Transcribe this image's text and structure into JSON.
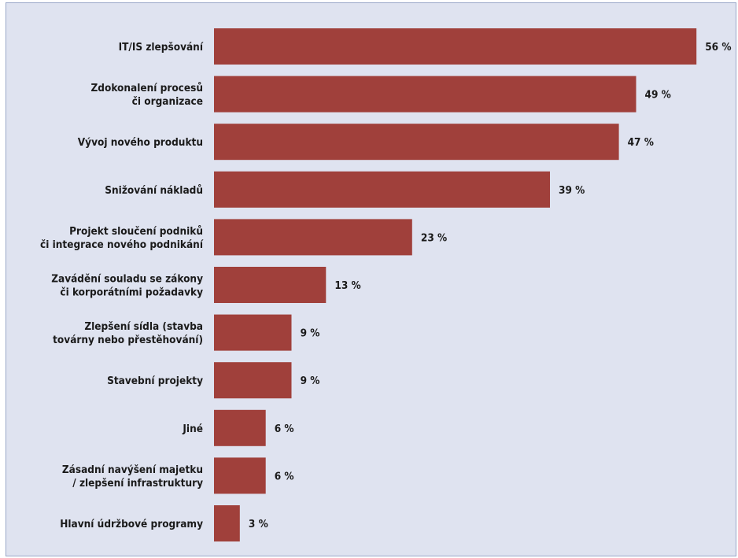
{
  "chart_data": {
    "type": "bar",
    "orientation": "horizontal",
    "categories": [
      "IT/IS zlepšování",
      "Zdokonalení procesů\nči organizace",
      "Vývoj nového produktu",
      "Snižování nákladů",
      "Projekt sloučení podniků\nči integrace nového podnikání",
      "Zavádění souladu se zákony\nči korporátními požadavky",
      "Zlepšení sídla (stavba\ntovárny nebo přestěhování)",
      "Stavební projekty",
      "Jiné",
      "Zásadní navýšení majetku\n/ zlepšení infrastruktury",
      "Hlavní údržbové programy"
    ],
    "values": [
      56,
      49,
      47,
      39,
      23,
      13,
      9,
      9,
      6,
      6,
      3
    ],
    "value_labels": [
      "56 %",
      "49 %",
      "47 %",
      "39 %",
      "23 %",
      "13 %",
      "9 %",
      "9 %",
      "6 %",
      "6 %",
      "3 %"
    ],
    "unit": "%",
    "grid": false,
    "legend": "none",
    "colors": {
      "bar": "#a0403b",
      "background": "#dfe3f0",
      "border": "#9aa8c8",
      "text": "#1a1a1a"
    }
  }
}
